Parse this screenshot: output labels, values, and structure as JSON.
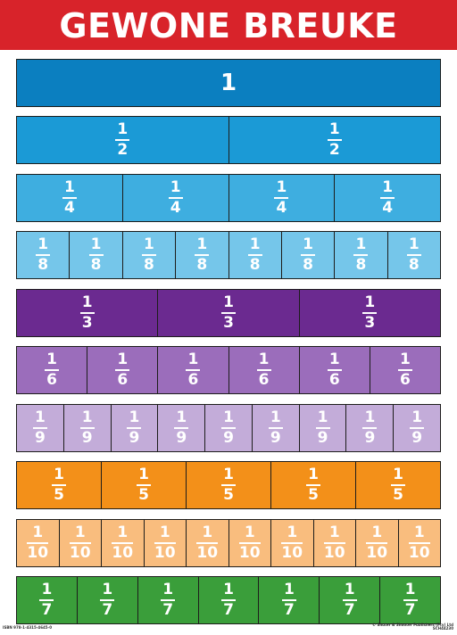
{
  "title": "GEWONE BREUKE",
  "rows": [
    {
      "color": "#0b7fc0",
      "cells": [
        {
          "num": "1",
          "den": ""
        }
      ]
    },
    {
      "color": "#1b9ad6",
      "cells": [
        {
          "num": "1",
          "den": "2"
        },
        {
          "num": "1",
          "den": "2"
        }
      ]
    },
    {
      "color": "#3eaee0",
      "cells": [
        {
          "num": "1",
          "den": "4"
        },
        {
          "num": "1",
          "den": "4"
        },
        {
          "num": "1",
          "den": "4"
        },
        {
          "num": "1",
          "den": "4"
        }
      ]
    },
    {
      "color": "#75c6ea",
      "cells": [
        {
          "num": "1",
          "den": "8"
        },
        {
          "num": "1",
          "den": "8"
        },
        {
          "num": "1",
          "den": "8"
        },
        {
          "num": "1",
          "den": "8"
        },
        {
          "num": "1",
          "den": "8"
        },
        {
          "num": "1",
          "den": "8"
        },
        {
          "num": "1",
          "den": "8"
        },
        {
          "num": "1",
          "den": "8"
        }
      ]
    },
    {
      "color": "#6b2a90",
      "cells": [
        {
          "num": "1",
          "den": "3"
        },
        {
          "num": "1",
          "den": "3"
        },
        {
          "num": "1",
          "den": "3"
        }
      ]
    },
    {
      "color": "#9b6dbb",
      "cells": [
        {
          "num": "1",
          "den": "6"
        },
        {
          "num": "1",
          "den": "6"
        },
        {
          "num": "1",
          "den": "6"
        },
        {
          "num": "1",
          "den": "6"
        },
        {
          "num": "1",
          "den": "6"
        },
        {
          "num": "1",
          "den": "6"
        }
      ]
    },
    {
      "color": "#c3acd9",
      "cells": [
        {
          "num": "1",
          "den": "9"
        },
        {
          "num": "1",
          "den": "9"
        },
        {
          "num": "1",
          "den": "9"
        },
        {
          "num": "1",
          "den": "9"
        },
        {
          "num": "1",
          "den": "9"
        },
        {
          "num": "1",
          "den": "9"
        },
        {
          "num": "1",
          "den": "9"
        },
        {
          "num": "1",
          "den": "9"
        },
        {
          "num": "1",
          "den": "9"
        }
      ]
    },
    {
      "color": "#f39019",
      "cells": [
        {
          "num": "1",
          "den": "5"
        },
        {
          "num": "1",
          "den": "5"
        },
        {
          "num": "1",
          "den": "5"
        },
        {
          "num": "1",
          "den": "5"
        },
        {
          "num": "1",
          "den": "5"
        }
      ]
    },
    {
      "color": "#f9bd7e",
      "cells": [
        {
          "num": "1",
          "den": "10"
        },
        {
          "num": "1",
          "den": "10"
        },
        {
          "num": "1",
          "den": "10"
        },
        {
          "num": "1",
          "den": "10"
        },
        {
          "num": "1",
          "den": "10"
        },
        {
          "num": "1",
          "den": "10"
        },
        {
          "num": "1",
          "den": "10"
        },
        {
          "num": "1",
          "den": "10"
        },
        {
          "num": "1",
          "den": "10"
        },
        {
          "num": "1",
          "den": "10"
        }
      ]
    },
    {
      "color": "#3a9e3a",
      "cells": [
        {
          "num": "1",
          "den": "7"
        },
        {
          "num": "1",
          "den": "7"
        },
        {
          "num": "1",
          "den": "7"
        },
        {
          "num": "1",
          "den": "7"
        },
        {
          "num": "1",
          "den": "7"
        },
        {
          "num": "1",
          "den": "7"
        },
        {
          "num": "1",
          "den": "7"
        }
      ]
    }
  ],
  "footer": {
    "isbn": "ISBN 978-1-4315-4645-0",
    "publisher": "© Shuter & Shooter Publishers (Pty) Ltd",
    "code": "SCH44230"
  }
}
